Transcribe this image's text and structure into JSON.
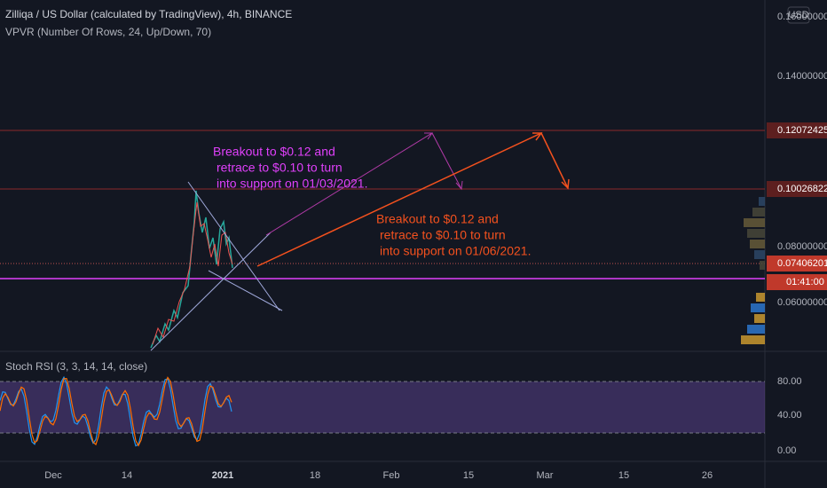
{
  "header": {
    "title": "Zilliqa / US Dollar (calculated by TradingView), 4h, BINANCE",
    "indicator": "VPVR (Number Of Rows, 24, Up/Down, 70)",
    "currency": "USD"
  },
  "price_axis": {
    "labels": [
      "0.16000000",
      "0.14000000",
      "0.08000000",
      "0.06000000"
    ]
  },
  "price_tags": [
    "0.12072425",
    "0.10026822",
    "0.07406201",
    "01:41:00"
  ],
  "annotations": [
    {
      "lines": [
        "Breakout to $0.12 and",
        "retrace to $0.10 to turn",
        "into support on 01/03/2021."
      ]
    },
    {
      "lines": [
        "Breakout to $0.12 and",
        "retrace to $0.10 to turn",
        "into support on 01/06/2021."
      ]
    }
  ],
  "rsi": {
    "title": "Stoch RSI (3, 3, 14, 14, close)",
    "labels": [
      "80.00",
      "40.00",
      "0.00"
    ]
  },
  "time_axis": [
    "Dec",
    "14",
    "2021",
    "18",
    "Feb",
    "15",
    "Mar",
    "15",
    "26"
  ]
}
